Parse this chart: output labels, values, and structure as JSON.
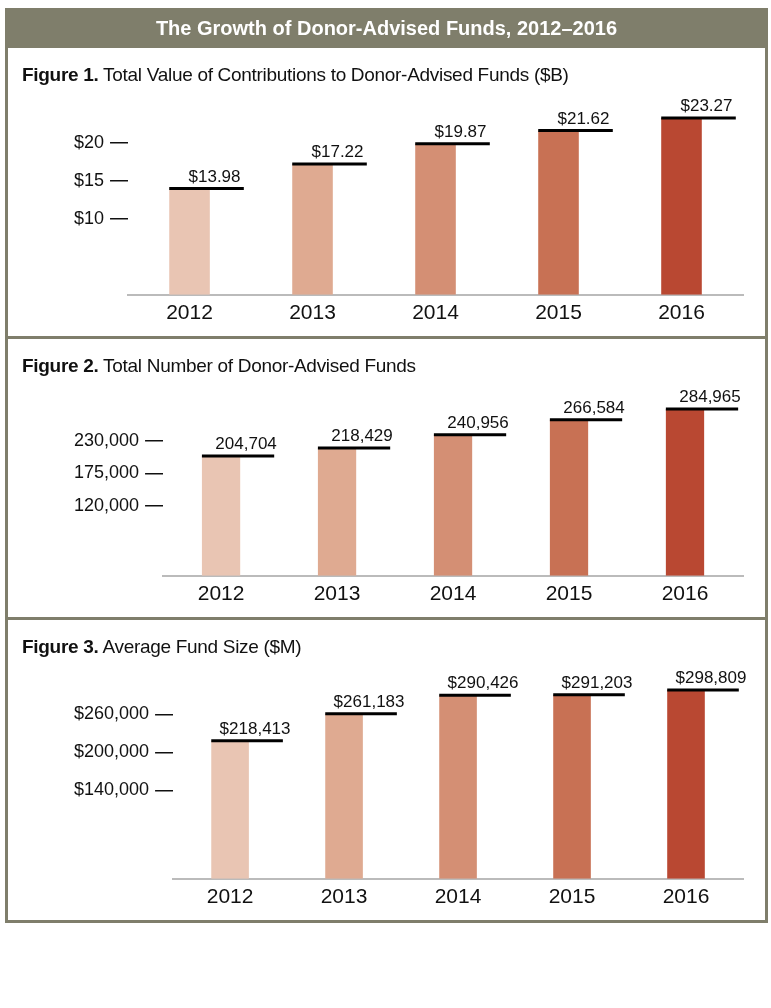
{
  "chart_data": [
    {
      "type": "bar",
      "title": "The Growth of Donor-Advised Funds, 2012–2016",
      "subtitle": "Figure 1. Total Value of Contributions to Donor-Advised Funds ($B)",
      "categories": [
        "2012",
        "2013",
        "2014",
        "2015",
        "2016"
      ],
      "values": [
        13.98,
        17.22,
        19.87,
        21.62,
        23.27
      ],
      "colors": [
        "#e9c5b3",
        "#dfaa91",
        "#d48f74",
        "#c87154",
        "#b94832"
      ],
      "value_labels": [
        "$13.98",
        "$17.22",
        "$19.87",
        "$21.62",
        "$23.27"
      ],
      "ylim": [
        0,
        23.27
      ],
      "yticks": [
        {
          "value": 10,
          "label": "$10"
        },
        {
          "value": 15,
          "label": "$15"
        },
        {
          "value": 20,
          "label": "$20"
        }
      ],
      "grid": false,
      "legend": false
    },
    {
      "type": "bar",
      "subtitle": "Figure 2. Total Number of Donor-Advised Funds",
      "categories": [
        "2012",
        "2013",
        "2014",
        "2015",
        "2016"
      ],
      "values": [
        204704,
        218429,
        240956,
        266584,
        284965
      ],
      "colors": [
        "#e9c5b3",
        "#dfaa91",
        "#d48f74",
        "#c87154",
        "#b94832"
      ],
      "value_labels": [
        "204,704",
        "218,429",
        "240,956",
        "266,584",
        "284,965"
      ],
      "ylim": [
        0,
        284965
      ],
      "yticks": [
        {
          "value": 120000,
          "label": "120,000"
        },
        {
          "value": 175000,
          "label": "175,000"
        },
        {
          "value": 230000,
          "label": "230,000"
        }
      ],
      "grid": false,
      "legend": false
    },
    {
      "type": "bar",
      "subtitle": "Figure 3. Average Fund Size ($M)",
      "categories": [
        "2012",
        "2013",
        "2014",
        "2015",
        "2016"
      ],
      "values": [
        218413,
        261183,
        290426,
        291203,
        298809
      ],
      "colors": [
        "#e9c5b3",
        "#dfaa91",
        "#d48f74",
        "#c87154",
        "#b94832"
      ],
      "value_labels": [
        "$218,413",
        "$261,183",
        "$290,426",
        "$291,203",
        "$298,809"
      ],
      "ylim": [
        0,
        298809
      ],
      "yticks": [
        {
          "value": 140000,
          "label": "$140,000"
        },
        {
          "value": 200000,
          "label": "$200,000"
        },
        {
          "value": 260000,
          "label": "$260,000"
        }
      ],
      "grid": false,
      "legend": false
    }
  ]
}
